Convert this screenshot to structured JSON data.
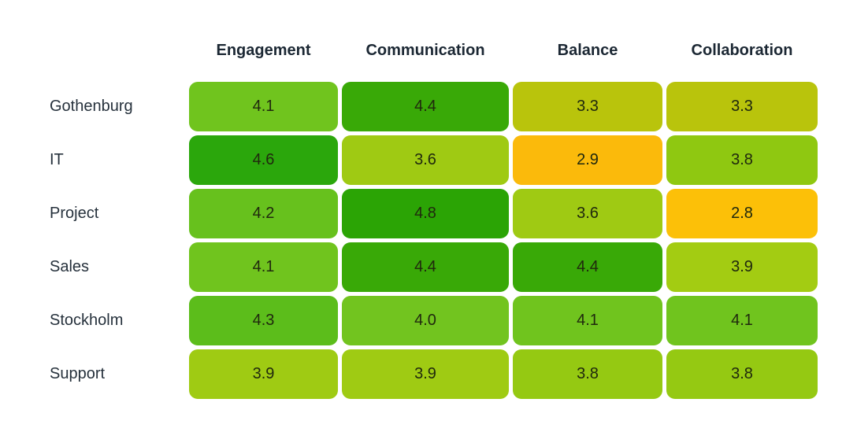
{
  "chart_data": {
    "type": "heatmap",
    "columns": [
      "Engagement",
      "Communication",
      "Balance",
      "Collaboration"
    ],
    "rows": [
      {
        "label": "Gothenburg",
        "values": [
          4.1,
          4.4,
          3.3,
          3.3
        ],
        "colors": [
          "#70c41e",
          "#39a907",
          "#b9c40c",
          "#b9c40c"
        ]
      },
      {
        "label": "IT",
        "values": [
          4.6,
          3.6,
          2.9,
          3.8
        ],
        "colors": [
          "#2ba70c",
          "#9fca13",
          "#fbba0b",
          "#8fc811"
        ]
      },
      {
        "label": "Project",
        "values": [
          4.2,
          4.8,
          3.6,
          2.8
        ],
        "colors": [
          "#67c11d",
          "#2ba405",
          "#9fca13",
          "#fcc008"
        ]
      },
      {
        "label": "Sales",
        "values": [
          4.1,
          4.4,
          4.4,
          3.9
        ],
        "colors": [
          "#70c41e",
          "#39a907",
          "#39a907",
          "#a3cc12"
        ]
      },
      {
        "label": "Stockholm",
        "values": [
          4.3,
          4.0,
          4.1,
          4.1
        ],
        "colors": [
          "#5cbd1b",
          "#72c41f",
          "#70c41e",
          "#70c41e"
        ]
      },
      {
        "label": "Support",
        "values": [
          3.9,
          3.9,
          3.8,
          3.8
        ],
        "colors": [
          "#9fcb13",
          "#9fcb13",
          "#95c912",
          "#95c912"
        ]
      }
    ],
    "value_range": [
      2.8,
      4.8
    ],
    "palette": {
      "low": "#fcc008",
      "mid": "#b9c40c",
      "high": "#2ba405"
    },
    "value_text_color": "#20290e",
    "header_text_color": "#1b2733",
    "row_label_text_color": "#26313c",
    "grid_gap_color": "#ffffff",
    "legend": "none",
    "title": ""
  }
}
